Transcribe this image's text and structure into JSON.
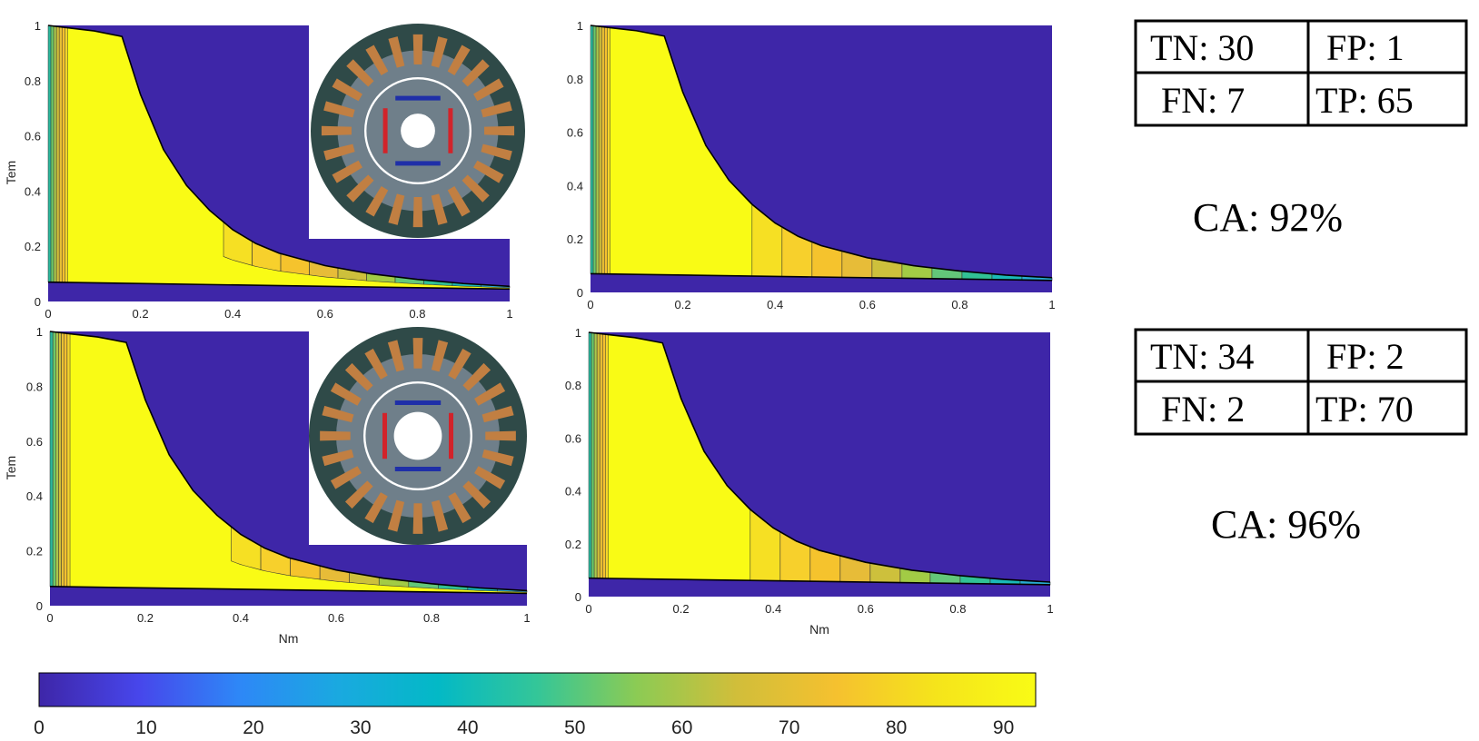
{
  "chart_data": {
    "type": "heatmap",
    "panels": [
      {
        "id": "top-left",
        "xlabel": "",
        "ylabel": "Tem",
        "xlim": [
          0,
          1
        ],
        "ylim": [
          0,
          1
        ],
        "xticks": [
          "0",
          "0.2",
          "0.4",
          "0.6",
          "0.8",
          "1"
        ],
        "yticks": [
          "0",
          "0.2",
          "0.4",
          "0.6",
          "0.8",
          "1"
        ],
        "inset": "motor-cross-section-a",
        "grid": false
      },
      {
        "id": "top-right",
        "xlabel": "",
        "ylabel": "",
        "xlim": [
          0,
          1
        ],
        "ylim": [
          0,
          1
        ],
        "xticks": [
          "0",
          "0.2",
          "0.4",
          "0.6",
          "0.8",
          "1"
        ],
        "yticks": [
          "0",
          "0.2",
          "0.4",
          "0.6",
          "0.8",
          "1"
        ],
        "grid": false
      },
      {
        "id": "bottom-left",
        "xlabel": "Nm",
        "ylabel": "Tem",
        "xlim": [
          0,
          1
        ],
        "ylim": [
          0,
          1
        ],
        "xticks": [
          "0",
          "0.2",
          "0.4",
          "0.6",
          "0.8",
          "1"
        ],
        "yticks": [
          "0",
          "0.2",
          "0.4",
          "0.6",
          "0.8",
          "1"
        ],
        "inset": "motor-cross-section-b",
        "grid": false
      },
      {
        "id": "bottom-right",
        "xlabel": "Nm",
        "ylabel": "",
        "xlim": [
          0,
          1
        ],
        "ylim": [
          0,
          1
        ],
        "xticks": [
          "0",
          "0.2",
          "0.4",
          "0.6",
          "0.8",
          "1"
        ],
        "yticks": [
          "0",
          "0.2",
          "0.4",
          "0.6",
          "0.8",
          "1"
        ],
        "grid": false
      }
    ],
    "envelope": [
      [
        0.0,
        1.0
      ],
      [
        0.05,
        0.99
      ],
      [
        0.1,
        0.98
      ],
      [
        0.16,
        0.96
      ],
      [
        0.2,
        0.75
      ],
      [
        0.25,
        0.55
      ],
      [
        0.3,
        0.42
      ],
      [
        0.35,
        0.33
      ],
      [
        0.4,
        0.26
      ],
      [
        0.45,
        0.21
      ],
      [
        0.5,
        0.175
      ],
      [
        0.6,
        0.13
      ],
      [
        0.7,
        0.1
      ],
      [
        0.8,
        0.08
      ],
      [
        0.9,
        0.065
      ],
      [
        1.0,
        0.055
      ]
    ],
    "floor_line": {
      "from": [
        0,
        0.07
      ],
      "to": [
        1,
        0.045
      ]
    },
    "colorbar": {
      "ticks": [
        "0",
        "10",
        "20",
        "30",
        "40",
        "50",
        "60",
        "70",
        "80",
        "90"
      ],
      "range": [
        0,
        93
      ],
      "colors": [
        "#3e26a8",
        "#4746eb",
        "#2e87f7",
        "#1aa9e0",
        "#03b9c6",
        "#34c698",
        "#8ccb54",
        "#d1be3a",
        "#f5c12f",
        "#f5e41b",
        "#f9fb15"
      ]
    },
    "results": [
      {
        "confusion": {
          "tn": "TN: 30",
          "fp": "FP: 1",
          "fn": "FN: 7",
          "tp": "TP: 65"
        },
        "ca": "CA: 92%"
      },
      {
        "confusion": {
          "tn": "TN: 34",
          "fp": "FP: 2",
          "fn": "FN: 2",
          "tp": "TP: 70"
        },
        "ca": "CA: 96%"
      }
    ]
  }
}
